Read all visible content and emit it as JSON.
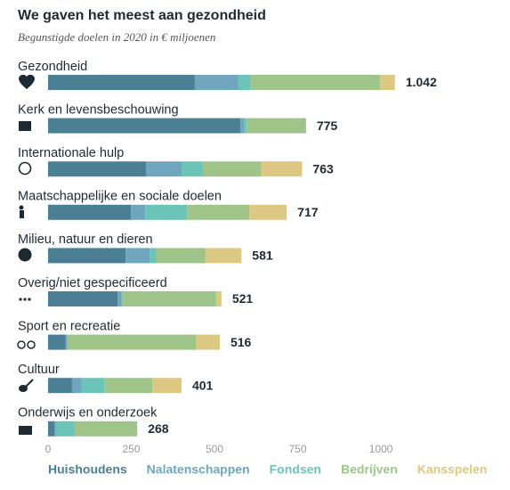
{
  "chart_data": {
    "type": "stacked-bar-horizontal",
    "title": "We gaven het meest aan gezondheid",
    "subtitle": "Begunstigde doelen in 2020 in € miljoenen",
    "categories": [
      "Gezondheid",
      "Kerk en levensbeschouwing",
      "Internationale hulp",
      "Maatschappelijke en sociale doelen",
      "Milieu, natuur en dieren",
      "Overig/niet gespecificeerd",
      "Sport en recreatie",
      "Cultuur",
      "Onderwijs en onderzoek"
    ],
    "series": [
      {
        "name": "Huishoudens",
        "color": "#4b7f94",
        "values": [
          441,
          578,
          294,
          249,
          233,
          209,
          53,
          72,
          19
        ]
      },
      {
        "name": "Nalatenschappen",
        "color": "#6fa5bd",
        "values": [
          131,
          11,
          107,
          43,
          72,
          11,
          3,
          27,
          5
        ]
      },
      {
        "name": "Fondsen",
        "color": "#6cc3b8",
        "values": [
          35,
          8,
          64,
          126,
          21,
          5,
          3,
          70,
          56
        ]
      },
      {
        "name": "Bedrijven",
        "color": "#9ec48a",
        "values": [
          390,
          178,
          176,
          187,
          147,
          280,
          385,
          144,
          188
        ]
      },
      {
        "name": "Kansspelen",
        "color": "#dcc883",
        "values": [
          45,
          0,
          122,
          112,
          108,
          16,
          72,
          88,
          0
        ]
      }
    ],
    "totals": [
      {
        "value": 1042,
        "label": "1.042"
      },
      775,
      763,
      717,
      581,
      521,
      516,
      401,
      268
    ],
    "xlim": [
      0,
      1000
    ],
    "xticks": [
      0,
      250,
      500,
      750,
      1000
    ]
  }
}
